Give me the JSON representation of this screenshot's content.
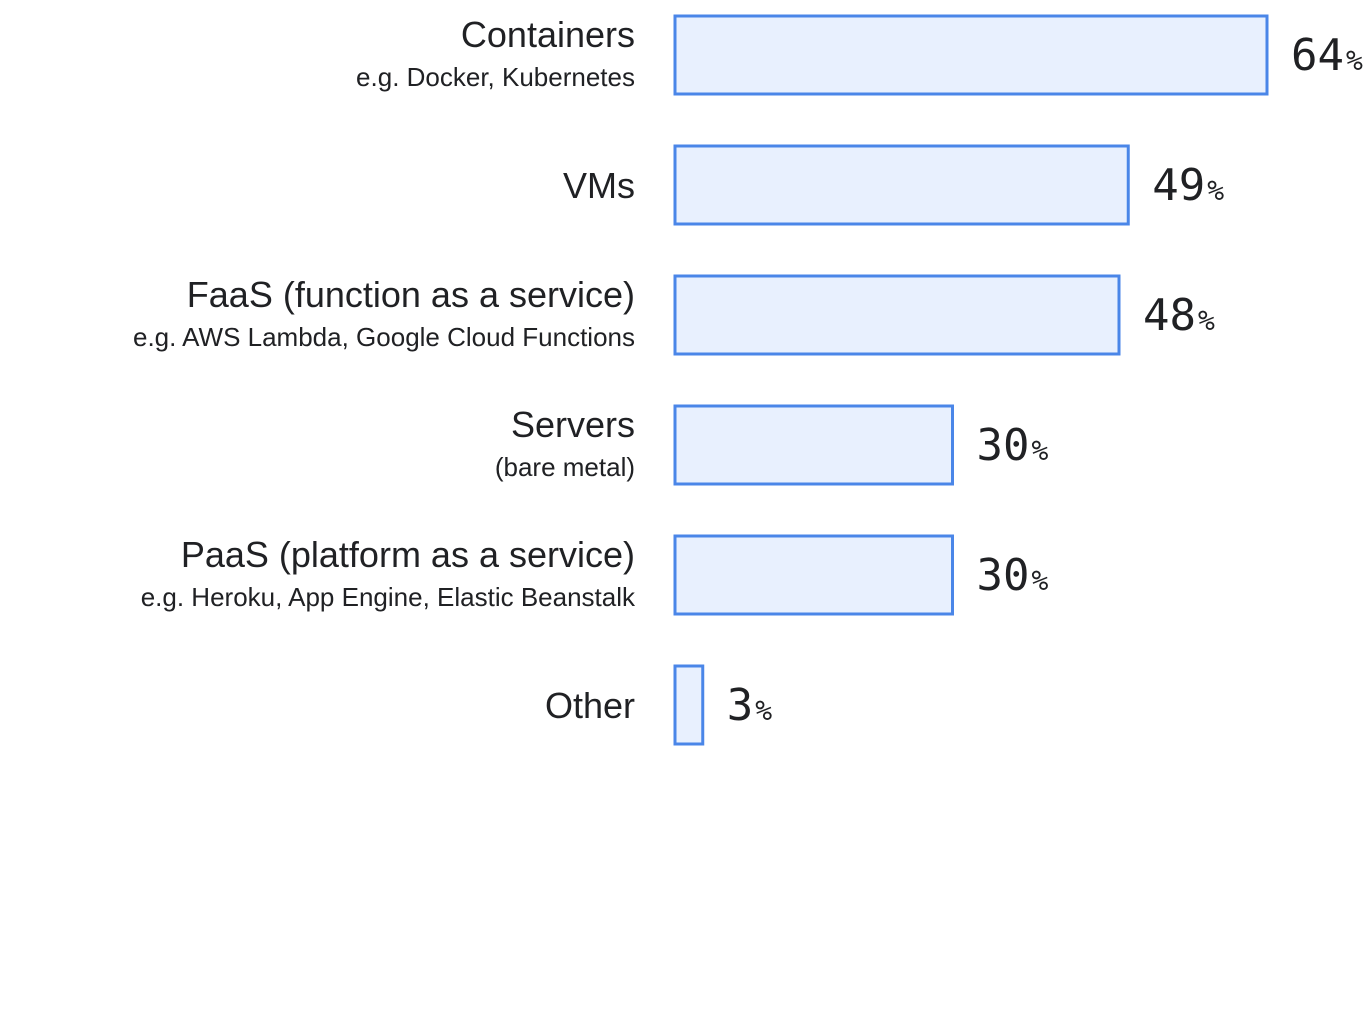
{
  "chart_data": {
    "type": "bar",
    "orientation": "horizontal",
    "categories": [
      {
        "label": "Containers",
        "sublabel": "e.g. Docker, Kubernetes"
      },
      {
        "label": "VMs",
        "sublabel": ""
      },
      {
        "label": "FaaS (function as a service)",
        "sublabel": "e.g. AWS Lambda, Google Cloud Functions"
      },
      {
        "label": "Servers",
        "sublabel": "(bare metal)"
      },
      {
        "label": "PaaS (platform as a service)",
        "sublabel": "e.g. Heroku, App Engine, Elastic Beanstalk"
      },
      {
        "label": "Other",
        "sublabel": ""
      }
    ],
    "values": [
      64,
      49,
      48,
      30,
      30,
      3
    ],
    "value_suffix": "%",
    "xlim": [
      0,
      64
    ],
    "grid": false,
    "legend": "none",
    "colors": {
      "bar_fill": "#e8f0fe",
      "bar_stroke": "#4a86e8",
      "text": "#202124"
    }
  }
}
